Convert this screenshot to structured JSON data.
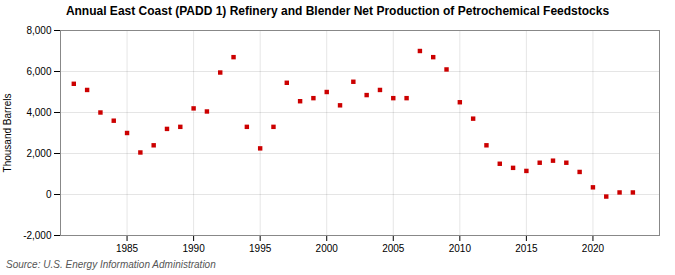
{
  "chart_data": {
    "type": "scatter",
    "title": "Annual East Coast (PADD 1) Refinery and Blender Net Production of Petrochemical Feedstocks",
    "ylabel": "Thousand Barrels",
    "annotations": [
      "Source: U.S. Energy Information Administration"
    ],
    "x": [
      1981,
      1982,
      1983,
      1984,
      1985,
      1986,
      1987,
      1988,
      1989,
      1990,
      1991,
      1992,
      1993,
      1994,
      1995,
      1996,
      1997,
      1998,
      1999,
      2000,
      2001,
      2002,
      2003,
      2004,
      2005,
      2006,
      2007,
      2008,
      2009,
      2010,
      2011,
      2012,
      2013,
      2014,
      2015,
      2016,
      2017,
      2018,
      2019,
      2020,
      2021,
      2022,
      2023
    ],
    "values": [
      5400,
      5100,
      4000,
      3600,
      3000,
      2050,
      2400,
      3200,
      3300,
      4200,
      4050,
      5950,
      6700,
      3300,
      2250,
      3300,
      5450,
      4550,
      4700,
      5000,
      4350,
      5500,
      4850,
      5100,
      4700,
      4700,
      7000,
      6700,
      6100,
      4500,
      3700,
      2400,
      1500,
      1300,
      1150,
      1550,
      1650,
      1550,
      1100,
      350,
      -100,
      100,
      100
    ],
    "color": "#cc0000",
    "marker": "square",
    "xlim": [
      1980,
      2025
    ],
    "xticks": [
      1985,
      1990,
      1995,
      2000,
      2005,
      2010,
      2015,
      2020
    ],
    "ylim": [
      -2000,
      8000
    ],
    "yticks": [
      {
        "value": -2000,
        "label": "-2,000"
      },
      0,
      {
        "value": 2000,
        "label": "2,000"
      },
      {
        "value": 4000,
        "label": "4,000"
      },
      {
        "value": 6000,
        "label": "6,000"
      },
      {
        "value": 8000,
        "label": "8,000"
      }
    ],
    "grid": true
  }
}
